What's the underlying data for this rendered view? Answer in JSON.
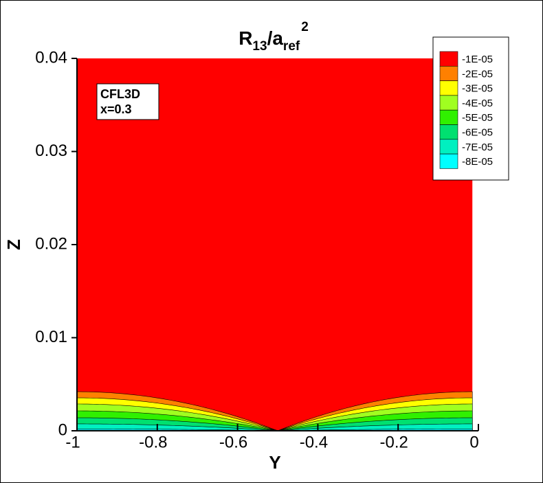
{
  "chart_data": {
    "type": "contour",
    "title_parts": [
      "R",
      "13",
      "/a",
      "ref",
      "2"
    ],
    "x_label": "Y",
    "y_label": "Z",
    "annotation": [
      "CFL3D",
      "x=0.3"
    ],
    "xlim": [
      -1,
      0
    ],
    "ylim": [
      0,
      0.04
    ],
    "xticks": [
      -1,
      -0.8,
      -0.6,
      -0.4,
      -0.2,
      0
    ],
    "yticks": [
      0,
      0.01,
      0.02,
      0.03,
      0.04
    ],
    "domain_y": [
      -1,
      -0.015
    ],
    "valley_y": -0.5,
    "levels": [
      {
        "value": -1e-05,
        "label": "-1E-05",
        "color": "#ff0000",
        "z_edge": 0.0048
      },
      {
        "value": -2e-05,
        "label": "-2E-05",
        "color": "#ff8000",
        "z_edge": 0.0042
      },
      {
        "value": -3e-05,
        "label": "-3E-05",
        "color": "#ffff00",
        "z_edge": 0.00354
      },
      {
        "value": -4e-05,
        "label": "-4E-05",
        "color": "#a0ff20",
        "z_edge": 0.00288
      },
      {
        "value": -5e-05,
        "label": "-5E-05",
        "color": "#30f000",
        "z_edge": 0.00214
      },
      {
        "value": -6e-05,
        "label": "-6E-05",
        "color": "#00e070",
        "z_edge": 0.0014
      },
      {
        "value": -7e-05,
        "label": "-7E-05",
        "color": "#00f0c0",
        "z_edge": 0.00074
      },
      {
        "value": -8e-05,
        "label": "-8E-05",
        "color": "#00ffff",
        "z_edge": 0.0002
      }
    ]
  }
}
